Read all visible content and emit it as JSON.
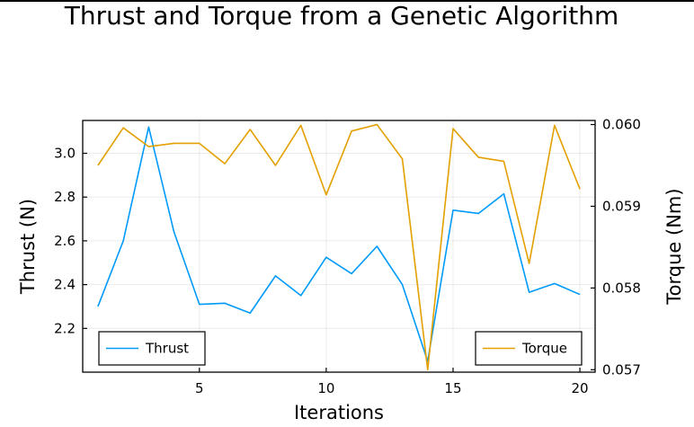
{
  "chart_data": {
    "type": "line",
    "title": "Thrust and Torque from a Genetic Algorithm",
    "xlabel": "Iterations",
    "ylabel_left": "Thrust (N)",
    "ylabel_right": "Torque (Nm)",
    "x": [
      1,
      2,
      3,
      4,
      5,
      6,
      7,
      8,
      9,
      10,
      11,
      12,
      13,
      14,
      15,
      16,
      17,
      18,
      19,
      20
    ],
    "xlim": [
      0.4,
      20.6
    ],
    "xticks": [
      5,
      10,
      15,
      20
    ],
    "ylim_left": [
      2.0,
      3.15
    ],
    "yticks_left": [
      2.2,
      2.4,
      2.6,
      2.8,
      3.0
    ],
    "yticklabels_left": [
      "2.2",
      "2.4",
      "2.6",
      "2.8",
      "3.0"
    ],
    "ylim_right": [
      0.05697,
      0.06005
    ],
    "yticks_right": [
      0.057,
      0.058,
      0.059,
      0.06
    ],
    "yticklabels_right": [
      "0.057",
      "0.058",
      "0.059",
      "0.060"
    ],
    "grid": true,
    "series": [
      {
        "name": "Thrust",
        "axis": "left",
        "color": "#009AFA",
        "legend_position": "bottom-left",
        "values": [
          2.3,
          2.6,
          3.12,
          2.64,
          2.31,
          2.315,
          2.27,
          2.44,
          2.35,
          2.525,
          2.45,
          2.575,
          2.4,
          2.05,
          2.74,
          2.725,
          2.815,
          2.365,
          2.405,
          2.355
        ]
      },
      {
        "name": "Torque",
        "axis": "right",
        "color": "#E3A000",
        "legend_position": "bottom-right",
        "values": [
          0.0595,
          0.05996,
          0.05973,
          0.05977,
          0.05977,
          0.05952,
          0.05994,
          0.0595,
          0.05999,
          0.05914,
          0.05992,
          0.06,
          0.05958,
          0.057,
          0.05995,
          0.0596,
          0.05955,
          0.0583,
          0.05999,
          0.05921
        ]
      }
    ]
  }
}
